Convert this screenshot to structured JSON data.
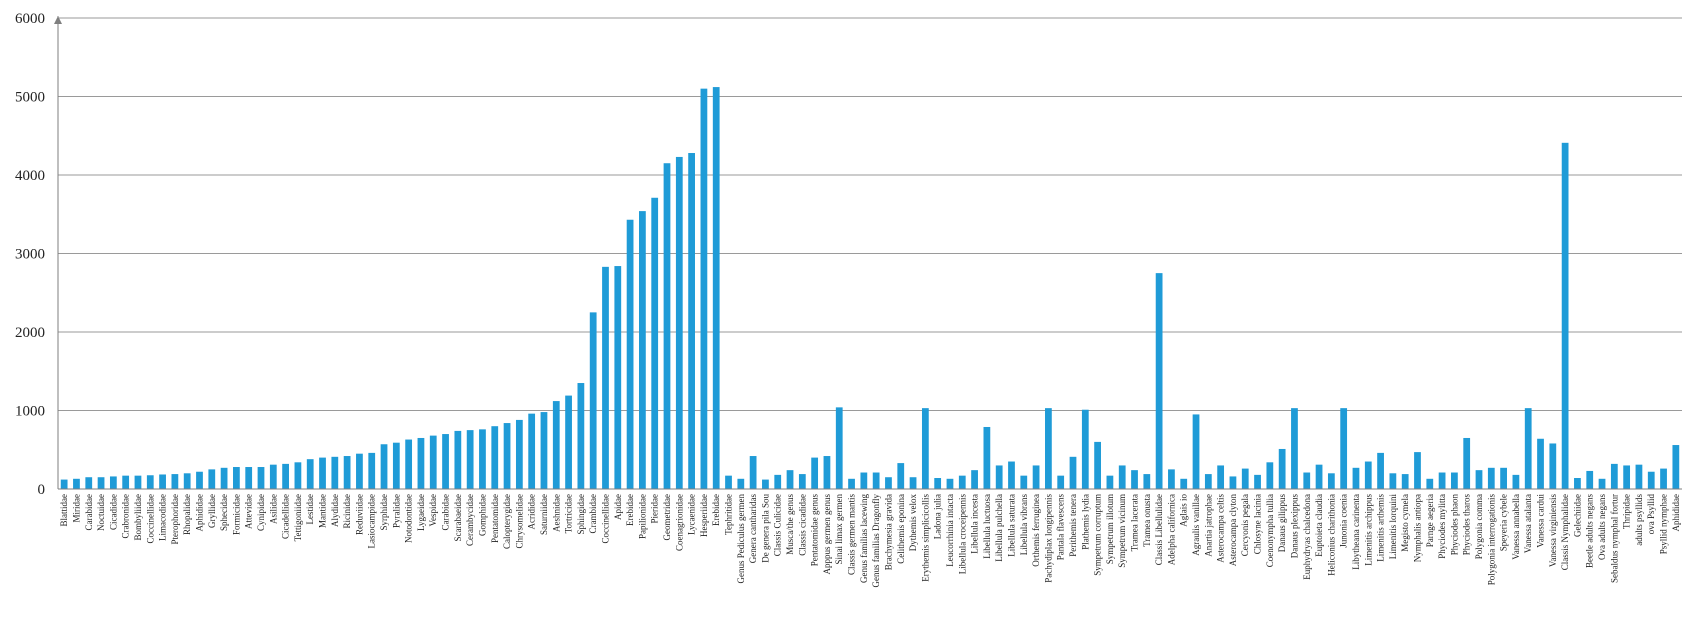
{
  "chart_data": {
    "type": "bar",
    "title": "",
    "xlabel": "",
    "ylabel": "",
    "ylim": [
      0,
      6000
    ],
    "yticks": [
      0,
      1000,
      2000,
      3000,
      4000,
      5000,
      6000
    ],
    "grid": "horizontal",
    "legend": "none",
    "bar_color": "#1f9bd7",
    "categories": [
      "Blattidae",
      "Miridae",
      "Carabidae",
      "Noctuidae",
      "Cicadidae",
      "Crabronidae",
      "Bombyliidae",
      "Coccinellidae",
      "Limacodidae",
      "Pterophoridae",
      "Rhopalidae",
      "Aphididae",
      "Gryllidae",
      "Sphecidae",
      "Formicidae",
      "Attevidae",
      "Cynipidae",
      "Asilidae",
      "Cicadellidae",
      "Tettigoniidae",
      "Lestidae",
      "Mantidae",
      "Alydidae",
      "Ricinidae",
      "Reduviidae",
      "Lasiocampidae",
      "Syrphidae",
      "Pyralidae",
      "Notodontidae",
      "Lygaeidae",
      "Vespidae",
      "Carabidae",
      "Scarabaeidae",
      "Cerambycidae",
      "Gomphidae",
      "Pentatomidae",
      "Calopterygidae",
      "Chrysomelidae",
      "Acrididae",
      "Saturniidae",
      "Aeshnidae",
      "Tortricidae",
      "Sphingidae",
      "Crambidae",
      "Coccinellidae",
      "Apidae",
      "Erebidae",
      "Papilionidae",
      "Pieridae",
      "Geometridae",
      "Coenagrionidae",
      "Lycaenidae",
      "Hesperiidae",
      "Erebidae",
      "Tephritidae",
      "Genus Pediculus germen",
      "Genera cantharidas",
      "De genera pila Sou",
      "Classis Culicidae",
      "Musca/the genus",
      "Classis cicadidae",
      "Pentatomidae genus",
      "Apppus germen genus",
      "Sinai limax germen",
      "Classis germen mantis",
      "Genus familias lacewing",
      "Genus familias Dragonfly",
      "Brachymesia gravida",
      "Celithemis eponina",
      "Dythemis velox",
      "Erythemis simplicicollis",
      "Ladona julia",
      "Leucorrhinia intacta",
      "Libellula croceipennis",
      "Libellula incesta",
      "Libellula luctuosa",
      "Libellula pulchella",
      "Libellula saturata",
      "Libellula vibrans",
      "Orthemis ferruginea",
      "Pachydiplax longipennis",
      "Pantala flavescens",
      "Perithemis tenera",
      "Plathemis lydia",
      "Sympetrum corruptum",
      "Sympetrum illotum",
      "Sympetrum vicinum",
      "Tramea lacerata",
      "Tramea onusta",
      "Classis Libellulidae",
      "Adelpha californica",
      "Aglais io",
      "Agraulis vanillae",
      "Anartia jatrophae",
      "Asterocampa celtis",
      "Asterocampa clyton",
      "Cercyonis pegala",
      "Chlosyne lacinia",
      "Coenonympha tullia",
      "Danaus gilippus",
      "Danaus plexippus",
      "Euphydryas chalcedona",
      "Euptoieta claudia",
      "Heliconius charithonia",
      "Junonia coenia",
      "Libytheana carinenta",
      "Limenitis archippus",
      "Limenitis arthemis",
      "Limenitis lorquini",
      "Megisto cymela",
      "Nymphalis antiopa",
      "Parnge aegeria",
      "Phyciodes mylitta",
      "Phyciodes phaon",
      "Phyciodes tharos",
      "Polygonia comma",
      "Polygonia interrogationis",
      "Speyeria cybele",
      "Vanessa annabella",
      "Vanessa atalanta",
      "Vanessa cardui",
      "Vanessa virginiensis",
      "Classis Nymphalidae",
      "Gelechiidae",
      "Beetle adults negans",
      "Ova adults negans",
      "Sebaldus nymphal fortur",
      "Thripidae",
      "adults psyllids",
      "ova Psyllid",
      "Psyllid nymphae",
      "Aphididae"
    ],
    "values": [
      120,
      130,
      150,
      150,
      160,
      170,
      170,
      175,
      185,
      190,
      200,
      220,
      250,
      270,
      280,
      280,
      280,
      310,
      320,
      340,
      380,
      400,
      410,
      420,
      450,
      460,
      570,
      590,
      630,
      650,
      680,
      700,
      740,
      750,
      760,
      800,
      840,
      880,
      960,
      980,
      1120,
      1190,
      1350,
      2250,
      2830,
      2840,
      3430,
      3540,
      3710,
      4150,
      4230,
      4280,
      5100,
      5120,
      170,
      130,
      420,
      120,
      180,
      240,
      190,
      400,
      420,
      1040,
      130,
      210,
      210,
      150,
      330,
      150,
      1030,
      140,
      130,
      170,
      240,
      790,
      300,
      350,
      170,
      300,
      1030,
      170,
      410,
      1010,
      600,
      170,
      300,
      240,
      190,
      2750,
      250,
      130,
      950,
      190,
      300,
      160,
      260,
      180,
      340,
      510,
      1030,
      210,
      310,
      200,
      1030,
      270,
      350,
      460,
      200,
      190,
      470,
      130,
      210,
      210,
      650,
      240,
      270,
      270,
      180,
      1030,
      640,
      580,
      4410,
      140,
      230,
      130,
      320,
      300,
      310,
      220,
      260,
      560
    ]
  }
}
